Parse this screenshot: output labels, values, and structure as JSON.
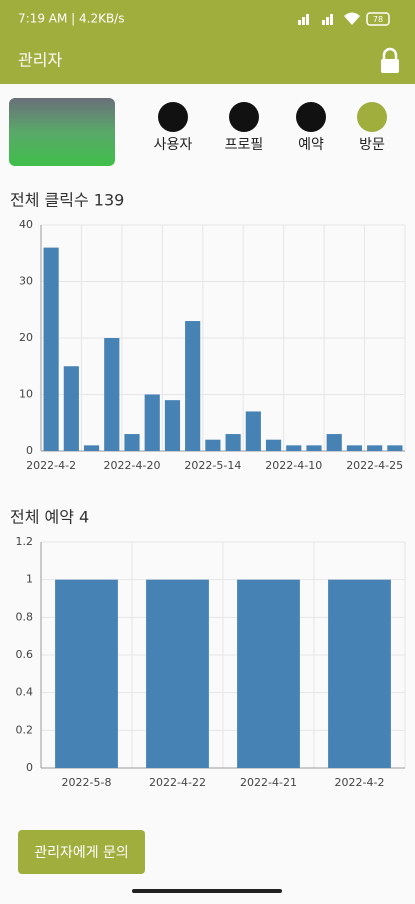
{
  "status_bar": {
    "time": "7:19 AM | 4.2KB/s",
    "battery": "78"
  },
  "app_bar": {
    "title": "관리자"
  },
  "tabs": [
    "사용자",
    "프로필",
    "예약",
    "방문"
  ],
  "chart_data": [
    {
      "type": "bar",
      "title": "전체 클릭수 139",
      "color": "#4682b4",
      "categories": [
        "2022-4-2",
        null,
        null,
        null,
        "2022-4-20",
        null,
        null,
        null,
        "2022-5-14",
        null,
        null,
        null,
        "2022-4-10",
        null,
        null,
        null,
        "2022-4-25",
        null
      ],
      "values": [
        36,
        15,
        1,
        20,
        3,
        10,
        9,
        23,
        2,
        3,
        7,
        2,
        1,
        1,
        3,
        1,
        1,
        1
      ],
      "ylim": [
        0,
        40
      ],
      "yticks": [
        0,
        10,
        20,
        30,
        40
      ],
      "grid": true
    },
    {
      "type": "bar",
      "title": "전체 예약 4",
      "color": "#4682b4",
      "categories": [
        "2022-5-8",
        "2022-4-22",
        "2022-4-21",
        "2022-4-2"
      ],
      "values": [
        1,
        1,
        1,
        1
      ],
      "ylim": [
        0,
        1.2
      ],
      "yticks": [
        0,
        0.2,
        0.4,
        0.6,
        0.8,
        1,
        1.2
      ],
      "grid": true
    }
  ],
  "button": {
    "label": "관리자에게 문의"
  }
}
